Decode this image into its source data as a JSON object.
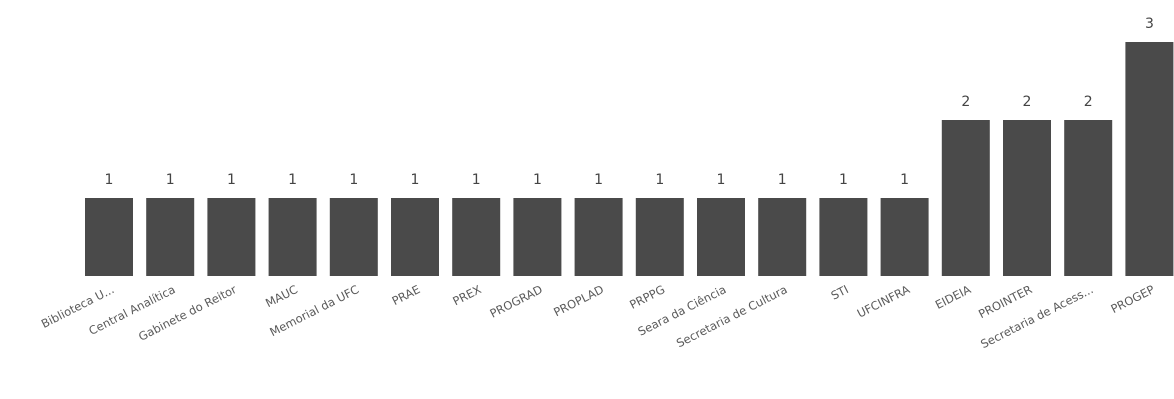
{
  "chart_data": {
    "type": "bar",
    "title": "",
    "xlabel": "",
    "ylabel": "",
    "ylim": [
      0,
      3
    ],
    "grid": false,
    "bar_color": "#4a4a4a",
    "categories": [
      "Biblioteca U...",
      "Central Analítica",
      "Gabinete do Reitor",
      "MAUC",
      "Memorial da UFC",
      "PRAE",
      "PREX",
      "PROGRAD",
      "PROPLAD",
      "PRPPG",
      "Seara da Ciência",
      "Secretaria de Cultura",
      "STI",
      "UFCINFRA",
      "EIDEIA",
      "PROINTER",
      "Secretaria de Acess...",
      "PROGEP"
    ],
    "values": [
      1,
      1,
      1,
      1,
      1,
      1,
      1,
      1,
      1,
      1,
      1,
      1,
      1,
      1,
      2,
      2,
      2,
      3
    ]
  }
}
